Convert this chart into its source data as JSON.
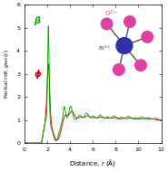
{
  "title": "",
  "xlabel": "Distance, $r$ (Å)",
  "ylabel": "Partial rdf, $g_{\\mathrm{BiO}}(r)$",
  "xlim": [
    0,
    12
  ],
  "ylim": [
    0,
    6
  ],
  "xticks": [
    0,
    2,
    4,
    6,
    8,
    10,
    12
  ],
  "yticks": [
    0,
    1,
    2,
    3,
    4,
    5,
    6
  ],
  "beta_color": "#00aa00",
  "delta_color": "#cc0000",
  "beta_label": "β",
  "delta_label": "ϕ",
  "O_label": "O$^{2-}$",
  "Bi_label": "Bi$^{3+}$",
  "O_color": "#e040a0",
  "Bi_color": "#3030aa",
  "bond_color": "#555555",
  "figsize": [
    1.85,
    1.89
  ],
  "dpi": 100
}
